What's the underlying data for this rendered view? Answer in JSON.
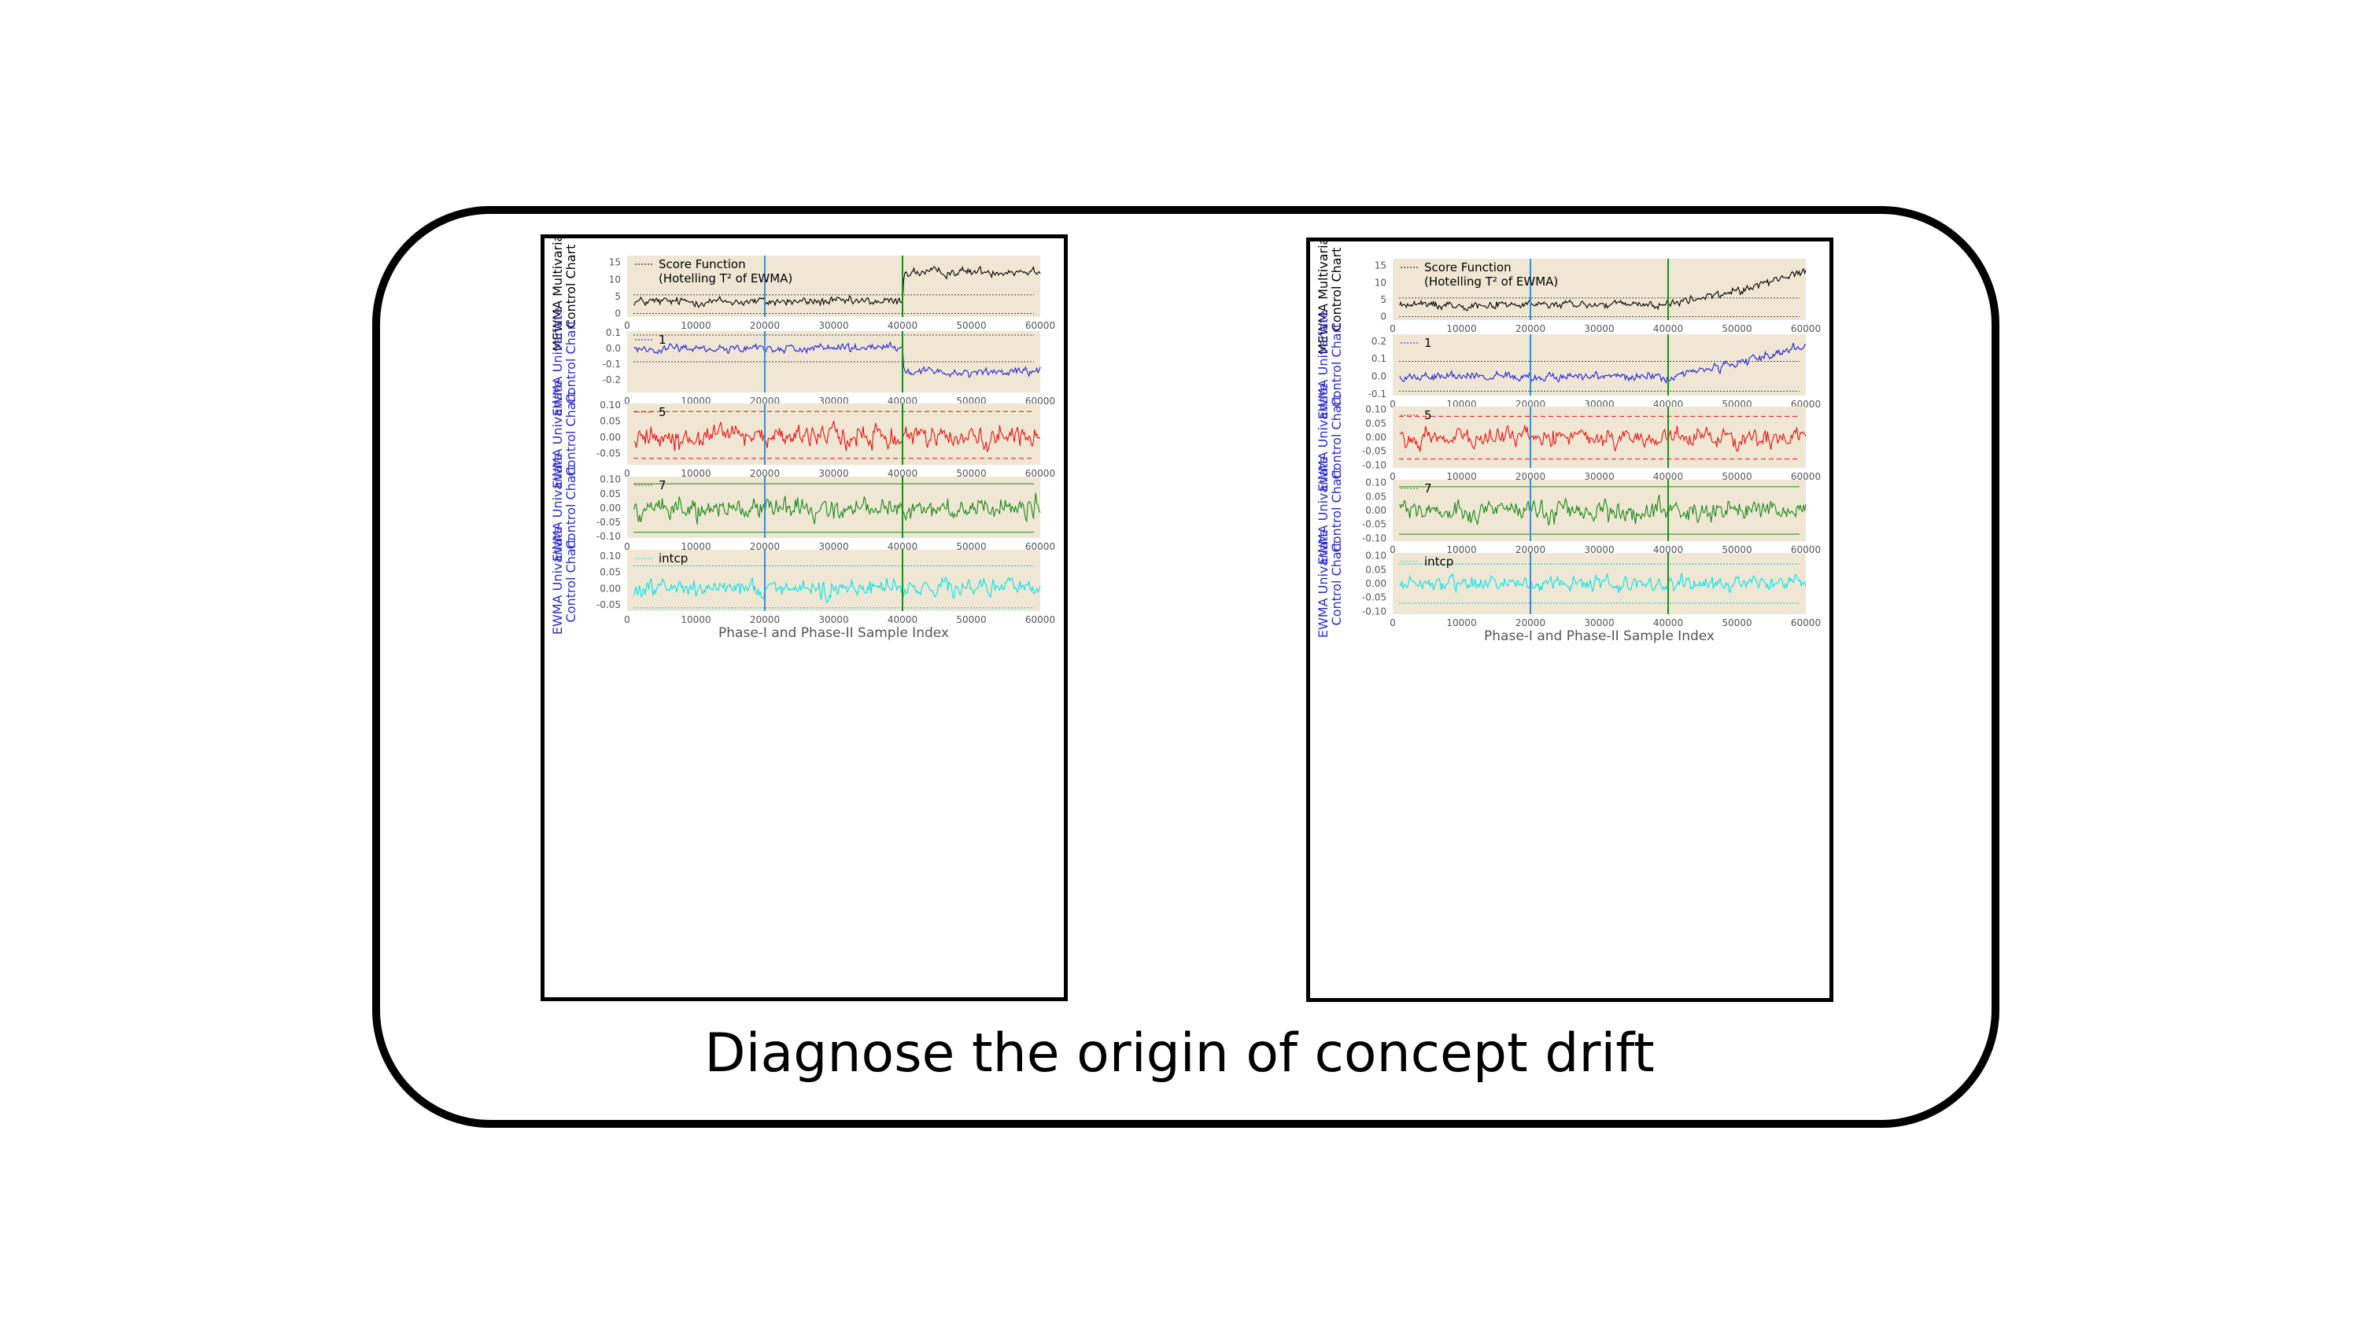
{
  "caption": "Diagnose the origin of concept drift",
  "colors": {
    "background": "#efe7d3",
    "change_point_1": "#3a8fd0",
    "change_point_2": "#1f8a1f"
  },
  "xlabel": "Phase-I and Phase-II Sample Index",
  "xticks": [
    "0",
    "10000",
    "20000",
    "30000",
    "40000",
    "50000",
    "60000"
  ],
  "chart_data": [
    {
      "panel": "left",
      "type": "line",
      "xlim": [
        0,
        60000
      ],
      "xlabel": "Phase-I and Phase-II Sample Index",
      "vlines": [
        20000,
        40000
      ],
      "subplots": [
        {
          "ylabel": [
            "MEWMA Multivariate",
            "Control Chart"
          ],
          "ylabel_color": "#000000",
          "legend": [
            "Score Function",
            "(Hotelling T² of EWMA)"
          ],
          "series_color": "#000000",
          "yticks": [
            "15",
            "10",
            "5",
            "0"
          ],
          "ytick_values": [
            15,
            10,
            5,
            0
          ],
          "ylim": [
            -1,
            17
          ],
          "limits": [
            5.5,
            0
          ],
          "mean": [
            [
              0,
              3.5
            ],
            [
              40000,
              3.5
            ],
            [
              40200,
              12
            ],
            [
              60000,
              12.5
            ]
          ],
          "noise": 1.1
        },
        {
          "ylabel": [
            "EWMA Univariate",
            "Control Chart"
          ],
          "ylabel_color": "#2a2ad0",
          "legend": [
            "1"
          ],
          "series_color": "#2222dd",
          "yticks": [
            "0.1",
            "0.0",
            "-0.1",
            "-0.2"
          ],
          "ytick_values": [
            0.1,
            0.0,
            -0.1,
            -0.2
          ],
          "ylim": [
            -0.28,
            0.11
          ],
          "limits": [
            0.085,
            -0.085
          ],
          "mean": [
            [
              0,
              0.0
            ],
            [
              40000,
              0.0
            ],
            [
              40200,
              -0.15
            ],
            [
              60000,
              -0.15
            ]
          ],
          "noise": 0.022
        },
        {
          "ylabel": [
            "EWMA Univariate",
            "Control Chart"
          ],
          "ylabel_color": "#2a2ad0",
          "legend": [
            "5"
          ],
          "series_color": "#ee1111",
          "yticks": [
            "0.10",
            "0.05",
            "0.00",
            "-0.05"
          ],
          "ytick_values": [
            0.1,
            0.05,
            0.0,
            -0.05
          ],
          "ylim": [
            -0.085,
            0.105
          ],
          "limits": [
            0.08,
            -0.065
          ],
          "mean": [
            [
              0,
              0.0
            ],
            [
              60000,
              0.0
            ]
          ],
          "noise": 0.028
        },
        {
          "ylabel": [
            "EWMA Univariate",
            "Control Chart"
          ],
          "ylabel_color": "#2a2ad0",
          "legend": [
            "7"
          ],
          "series_color": "#1a8a1a",
          "yticks": [
            "0.10",
            "0.05",
            "0.00",
            "-0.05",
            "-0.10"
          ],
          "ytick_values": [
            0.1,
            0.05,
            0.0,
            -0.05,
            -0.1
          ],
          "ylim": [
            -0.105,
            0.11
          ],
          "limits": [
            0.085,
            -0.085
          ],
          "mean": [
            [
              0,
              0.0
            ],
            [
              60000,
              0.0
            ]
          ],
          "noise": 0.032
        },
        {
          "ylabel": [
            "EWMA Univariate",
            "Control Chart"
          ],
          "ylabel_color": "#2a2ad0",
          "legend": [
            "intcp"
          ],
          "series_color": "#00e5ee",
          "yticks": [
            "0.10",
            "0.05",
            "0.00",
            "-0.05"
          ],
          "ytick_values": [
            0.1,
            0.05,
            0.0,
            -0.05
          ],
          "ylim": [
            -0.07,
            0.12
          ],
          "limits": [
            0.07,
            -0.06
          ],
          "mean": [
            [
              0,
              0.0
            ],
            [
              60000,
              0.0
            ]
          ],
          "noise": 0.022
        }
      ]
    },
    {
      "panel": "right",
      "type": "line",
      "xlim": [
        0,
        60000
      ],
      "xlabel": "Phase-I and Phase-II Sample Index",
      "vlines": [
        20000,
        40000
      ],
      "subplots": [
        {
          "ylabel": [
            "MEWMA Multivariate",
            "Control Chart"
          ],
          "ylabel_color": "#000000",
          "legend": [
            "Score Function",
            "(Hotelling T² of EWMA)"
          ],
          "series_color": "#000000",
          "yticks": [
            "15",
            "10",
            "5",
            "0"
          ],
          "ytick_values": [
            15,
            10,
            5,
            0
          ],
          "ylim": [
            -1,
            17
          ],
          "limits": [
            5.5,
            0
          ],
          "mean": [
            [
              0,
              3.5
            ],
            [
              40000,
              3.5
            ],
            [
              50000,
              7.5
            ],
            [
              60000,
              13.5
            ]
          ],
          "noise": 1.0
        },
        {
          "ylabel": [
            "EWMA Univariate",
            "Control Chart"
          ],
          "ylabel_color": "#2a2ad0",
          "legend": [
            "1"
          ],
          "series_color": "#2222dd",
          "yticks": [
            "0.2",
            "0.1",
            "0.0",
            "-0.1"
          ],
          "ytick_values": [
            0.2,
            0.1,
            0.0,
            -0.1
          ],
          "ylim": [
            -0.11,
            0.24
          ],
          "limits": [
            0.085,
            -0.085
          ],
          "mean": [
            [
              0,
              0.0
            ],
            [
              40000,
              0.0
            ],
            [
              50000,
              0.07
            ],
            [
              60000,
              0.17
            ]
          ],
          "noise": 0.022
        },
        {
          "ylabel": [
            "EWMA Univariate",
            "Control Chart"
          ],
          "ylabel_color": "#2a2ad0",
          "legend": [
            "5"
          ],
          "series_color": "#ee1111",
          "yticks": [
            "0.10",
            "0.05",
            "0.00",
            "-0.05",
            "-0.10"
          ],
          "ytick_values": [
            0.1,
            0.05,
            0.0,
            -0.05,
            -0.1
          ],
          "ylim": [
            -0.11,
            0.11
          ],
          "limits": [
            0.075,
            -0.078
          ],
          "mean": [
            [
              0,
              0.0
            ],
            [
              60000,
              0.0
            ]
          ],
          "noise": 0.028
        },
        {
          "ylabel": [
            "EWMA Univariate",
            "Control Chart"
          ],
          "ylabel_color": "#2a2ad0",
          "legend": [
            "7"
          ],
          "series_color": "#1a8a1a",
          "yticks": [
            "0.10",
            "0.05",
            "0.00",
            "-0.05",
            "-0.10"
          ],
          "ytick_values": [
            0.1,
            0.05,
            0.0,
            -0.05,
            -0.1
          ],
          "ylim": [
            -0.11,
            0.11
          ],
          "limits": [
            0.085,
            -0.085
          ],
          "mean": [
            [
              0,
              0.0
            ],
            [
              60000,
              0.0
            ]
          ],
          "noise": 0.032
        },
        {
          "ylabel": [
            "EWMA Univariate",
            "Control Chart"
          ],
          "ylabel_color": "#2a2ad0",
          "legend": [
            "intcp"
          ],
          "series_color": "#00e5ee",
          "yticks": [
            "0.10",
            "0.05",
            "0.00",
            "-0.05",
            "-0.10"
          ],
          "ytick_values": [
            0.1,
            0.05,
            0.0,
            -0.05,
            -0.1
          ],
          "ylim": [
            -0.11,
            0.11
          ],
          "limits": [
            0.07,
            -0.07
          ],
          "mean": [
            [
              0,
              0.0
            ],
            [
              60000,
              0.0
            ]
          ],
          "noise": 0.022
        }
      ]
    }
  ]
}
